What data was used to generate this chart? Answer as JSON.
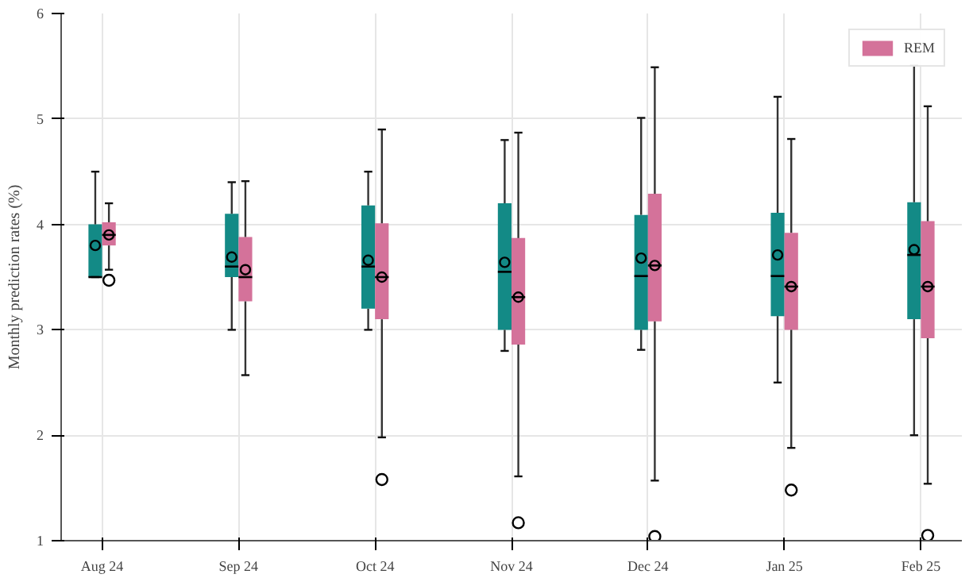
{
  "chart_data": {
    "type": "box",
    "ylabel": "Monthly prediction rates (%)",
    "categories": [
      "Aug 24",
      "Sep 24",
      "Oct 24",
      "Nov 24",
      "Dec 24",
      "Jan 25",
      "Feb 25"
    ],
    "ylim": [
      1,
      6
    ],
    "yticks": [
      1,
      2,
      3,
      4,
      5,
      6
    ],
    "grid": true,
    "legend": "top right",
    "series": [
      {
        "color": "#138a86",
        "boxes": [
          {
            "low": 3.5,
            "q1": 3.5,
            "median": 3.5,
            "q3": 4.0,
            "high": 4.5,
            "mean": 3.8
          },
          {
            "low": 3.0,
            "q1": 3.5,
            "median": 3.6,
            "q3": 4.1,
            "high": 4.4,
            "mean": 3.69
          },
          {
            "low": 3.0,
            "q1": 3.2,
            "median": 3.6,
            "q3": 4.18,
            "high": 4.5,
            "mean": 3.66
          },
          {
            "low": 2.8,
            "q1": 3.0,
            "median": 3.55,
            "q3": 4.2,
            "high": 4.8,
            "mean": 3.64
          },
          {
            "low": 2.81,
            "q1": 3.0,
            "median": 3.51,
            "q3": 4.09,
            "high": 5.01,
            "mean": 3.68
          },
          {
            "low": 2.5,
            "q1": 3.13,
            "median": 3.51,
            "q3": 4.11,
            "high": 5.21,
            "mean": 3.71
          },
          {
            "low": 2.0,
            "q1": 3.1,
            "median": 3.71,
            "q3": 4.21,
            "high": 5.51,
            "mean": 3.76
          }
        ]
      },
      {
        "name": "REM",
        "color": "#d4729a",
        "boxes": [
          {
            "low": 3.57,
            "q1": 3.8,
            "median": 3.9,
            "q3": 4.02,
            "high": 4.2,
            "mean": 3.9,
            "outliers": [
              3.47
            ]
          },
          {
            "low": 2.57,
            "q1": 3.27,
            "median": 3.5,
            "q3": 3.88,
            "high": 4.41,
            "mean": 3.57
          },
          {
            "low": 1.98,
            "q1": 3.1,
            "median": 3.5,
            "q3": 4.01,
            "high": 4.9,
            "mean": 3.5,
            "outliers": [
              1.58
            ]
          },
          {
            "low": 1.61,
            "q1": 2.86,
            "median": 3.31,
            "q3": 3.87,
            "high": 4.87,
            "mean": 3.31,
            "outliers": [
              1.17
            ]
          },
          {
            "low": 1.57,
            "q1": 3.08,
            "median": 3.61,
            "q3": 4.29,
            "high": 5.49,
            "mean": 3.61,
            "outliers": [
              1.04
            ]
          },
          {
            "low": 1.88,
            "q1": 3.0,
            "median": 3.41,
            "q3": 3.92,
            "high": 4.81,
            "mean": 3.41,
            "outliers": [
              1.48
            ]
          },
          {
            "low": 1.54,
            "q1": 2.92,
            "median": 3.41,
            "q3": 4.03,
            "high": 5.12,
            "mean": 3.41,
            "outliers": [
              1.05
            ]
          }
        ]
      }
    ]
  }
}
